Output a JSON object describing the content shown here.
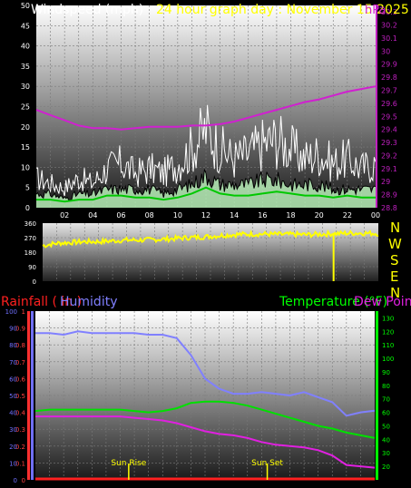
{
  "header": {
    "windspeed_label": "Windspeed (mph)",
    "date_label": "24 hour graph day : November 15 2025",
    "pressure_axis_unit": "hPa"
  },
  "colors": {
    "windspeed": "#ffffff",
    "gust": "#ffffff",
    "avg_wind": "#00c800",
    "wind_fill": "#b8f0b8",
    "pressure": "#d020d0",
    "direction": "#ffff00",
    "rainfall": "#ff2020",
    "humidity": "#8080ff",
    "temperature": "#00e000",
    "dewpoint": "#e020e0",
    "axis_wind": "#ffffff",
    "axis_pressure": "#c020c0",
    "axis_rain": "#ff4040",
    "axis_humidity": "#7070ff",
    "axis_temp": "#00ff00"
  },
  "compass": [
    "N",
    "W",
    "S",
    "E",
    "N"
  ],
  "chart_data": [
    {
      "type": "line",
      "name": "wind-pressure",
      "title": "24 hour graph day : November 15 2025",
      "xlabel": "",
      "x_ticks": [
        "02",
        "04",
        "06",
        "08",
        "10",
        "12",
        "14",
        "16",
        "18",
        "20",
        "22",
        "00"
      ],
      "wind_axis": {
        "label": "Windspeed (mph)",
        "range": [
          0,
          50
        ],
        "ticks": [
          0,
          5,
          10,
          15,
          20,
          25,
          30,
          35,
          40,
          45,
          50
        ]
      },
      "pressure_axis": {
        "range": [
          28.8,
          30.35
        ],
        "ticks": [
          "28.8",
          "28.9",
          "29",
          "29.1",
          "29.2",
          "29.3",
          "29.4",
          "29.5",
          "29.6",
          "29.7",
          "29.8",
          "29.9",
          "30",
          "30.1",
          "30.2",
          "30.3"
        ]
      },
      "hours": [
        0,
        1,
        2,
        3,
        4,
        5,
        6,
        7,
        8,
        9,
        10,
        11,
        12,
        13,
        14,
        15,
        16,
        17,
        18,
        19,
        20,
        21,
        22,
        23,
        24
      ],
      "series": [
        {
          "key": "gust",
          "values": [
            6,
            5,
            4,
            6,
            5,
            8,
            9,
            7,
            8,
            7,
            9,
            12,
            16,
            12,
            10,
            11,
            13,
            14,
            12,
            10,
            11,
            9,
            10,
            8,
            9
          ]
        },
        {
          "key": "wind",
          "values": [
            3,
            3,
            2,
            3,
            3,
            4,
            4,
            4,
            4,
            3,
            4,
            5,
            7,
            5,
            5,
            5,
            6,
            6,
            5,
            5,
            5,
            4,
            4,
            4,
            4
          ]
        },
        {
          "key": "avg",
          "values": [
            2,
            2,
            1.5,
            2,
            2,
            3,
            3,
            2.5,
            2.5,
            2,
            2.5,
            3.5,
            5,
            3.5,
            3,
            3,
            3.5,
            4,
            3.5,
            3,
            3,
            2.5,
            3,
            2.5,
            2.5
          ]
        },
        {
          "key": "pressure",
          "values": [
            29.55,
            29.51,
            29.47,
            29.43,
            29.41,
            29.41,
            29.4,
            29.41,
            29.42,
            29.42,
            29.42,
            29.43,
            29.43,
            29.44,
            29.46,
            29.49,
            29.52,
            29.55,
            29.58,
            29.61,
            29.63,
            29.66,
            29.69,
            29.71,
            29.73
          ]
        }
      ]
    },
    {
      "type": "scatter",
      "name": "wind-direction",
      "y_range": [
        0,
        360
      ],
      "y_ticks": [
        0,
        90,
        180,
        270,
        360
      ],
      "hours": [
        0,
        1,
        2,
        3,
        4,
        5,
        6,
        7,
        8,
        9,
        10,
        11,
        12,
        13,
        14,
        15,
        16,
        17,
        18,
        19,
        20,
        21,
        22,
        23,
        24
      ],
      "values": [
        220,
        235,
        240,
        245,
        245,
        250,
        255,
        255,
        258,
        262,
        268,
        272,
        278,
        285,
        290,
        292,
        292,
        290,
        290,
        288,
        292,
        295,
        298,
        298,
        295
      ],
      "marker_hour": 20.8
    },
    {
      "type": "line",
      "name": "rain-humidity-temp",
      "rain_axis": {
        "label": "Rainfall ( in )",
        "range": [
          0,
          1
        ],
        "ticks": [
          "0",
          "0.1",
          "0.2",
          "0.3",
          "0.4",
          "0.5",
          "0.6",
          "0.7",
          "0.8",
          "0.9",
          "1"
        ]
      },
      "humidity_axis": {
        "label": "Humidity",
        "range": [
          0,
          100
        ],
        "ticks": [
          0,
          10,
          20,
          30,
          40,
          50,
          60,
          70,
          80,
          90,
          100
        ]
      },
      "temp_axis": {
        "label": "Temperature (°F)",
        "range": [
          10,
          135
        ],
        "ticks": [
          20,
          30,
          40,
          50,
          60,
          70,
          80,
          90,
          100,
          110,
          120,
          130
        ]
      },
      "dewpoint_label": "Dew Point",
      "hours": [
        0,
        1,
        2,
        3,
        4,
        5,
        6,
        7,
        8,
        9,
        10,
        11,
        12,
        13,
        14,
        15,
        16,
        17,
        18,
        19,
        20,
        21,
        22,
        23,
        24
      ],
      "series": [
        {
          "key": "humidity",
          "values": [
            87,
            87,
            86,
            88,
            87,
            87,
            87,
            87,
            86,
            86,
            84,
            74,
            60,
            54,
            51,
            51,
            52,
            51,
            50,
            52,
            49,
            46,
            38,
            40,
            41
          ]
        },
        {
          "key": "temperature",
          "values": [
            61,
            62,
            62,
            62,
            62,
            62,
            62,
            61,
            60,
            61,
            63,
            67,
            68,
            68,
            67,
            65,
            62,
            59,
            56,
            53,
            50,
            48,
            45,
            43,
            41
          ]
        },
        {
          "key": "dewpoint",
          "values": [
            57,
            57,
            57,
            57,
            57,
            57,
            57,
            56,
            55,
            54,
            52,
            49,
            46,
            44,
            43,
            41,
            38,
            36,
            35,
            34,
            32,
            28,
            21,
            20,
            19
          ]
        },
        {
          "key": "rainfall",
          "values": [
            0,
            0,
            0,
            0,
            0,
            0,
            0,
            0,
            0,
            0,
            0,
            0,
            0,
            0,
            0,
            0,
            0,
            0,
            0,
            0,
            0,
            0,
            0,
            0,
            0
          ]
        }
      ],
      "annotations": [
        {
          "text": "Sun Rise",
          "hour": 6.6
        },
        {
          "text": "Sun Set",
          "hour": 16.4
        }
      ]
    }
  ]
}
